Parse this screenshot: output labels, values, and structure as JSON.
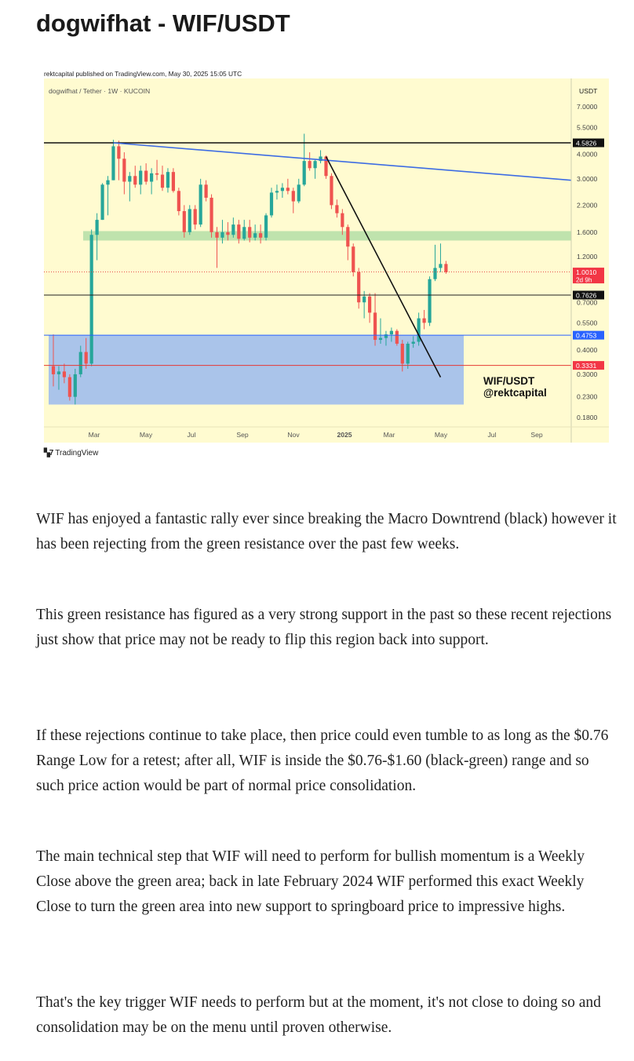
{
  "page_title": "dogwifhat - WIF/USDT",
  "chart_data": {
    "type": "candlestick",
    "published_line": "rektcapital published on TradingView.com, May 30, 2025 15:05 UTC",
    "symbol_line": "dogwifhat / Tether · 1W · KUCOIN",
    "currency": "USDT",
    "scale": "log",
    "y_ticks": [
      "7.0000",
      "5.5000",
      "4.0000",
      "3.0000",
      "2.2000",
      "1.6000",
      "1.2000",
      "0.7000",
      "0.5500",
      "0.4000",
      "0.3000",
      "0.2300",
      "0.1800"
    ],
    "x_ticks": [
      "Mar",
      "May",
      "Jul",
      "Sep",
      "Nov",
      "2025",
      "Mar",
      "May",
      "Jul",
      "Sep"
    ],
    "price_labels": [
      {
        "text": "4.5826",
        "color": "#111111"
      },
      {
        "text": "1.0010",
        "sub": "2d 9h",
        "color": "#f23645"
      },
      {
        "text": "0.7626",
        "color": "#111111"
      },
      {
        "text": "0.4753",
        "color": "#2962ff"
      },
      {
        "text": "0.3331",
        "color": "#f23645"
      }
    ],
    "levels": {
      "resistance_line": 4.5826,
      "range_low": 0.7626,
      "blue_line": 0.4753,
      "red_line": 0.3331
    },
    "zones": {
      "green_resistance": [
        1.45,
        1.62
      ],
      "blue_support": [
        0.21,
        0.4753
      ]
    },
    "annotation": {
      "line1": "WIF/USDT",
      "line2": "@rektcapital"
    },
    "candles": [
      {
        "date": "2024-01-08",
        "o": 0.33,
        "h": 0.48,
        "l": 0.26,
        "c": 0.3
      },
      {
        "date": "2024-01-15",
        "o": 0.3,
        "h": 0.33,
        "l": 0.25,
        "c": 0.31
      },
      {
        "date": "2024-01-22",
        "o": 0.31,
        "h": 0.34,
        "l": 0.27,
        "c": 0.29
      },
      {
        "date": "2024-01-29",
        "o": 0.29,
        "h": 0.3,
        "l": 0.22,
        "c": 0.23
      },
      {
        "date": "2024-02-05",
        "o": 0.23,
        "h": 0.32,
        "l": 0.21,
        "c": 0.3
      },
      {
        "date": "2024-02-12",
        "o": 0.3,
        "h": 0.42,
        "l": 0.29,
        "c": 0.39
      },
      {
        "date": "2024-02-19",
        "o": 0.39,
        "h": 0.46,
        "l": 0.32,
        "c": 0.34
      },
      {
        "date": "2024-02-26",
        "o": 0.34,
        "h": 1.65,
        "l": 0.33,
        "c": 1.55
      },
      {
        "date": "2024-03-04",
        "o": 1.55,
        "h": 2.0,
        "l": 1.15,
        "c": 1.85
      },
      {
        "date": "2024-03-11",
        "o": 1.85,
        "h": 2.85,
        "l": 1.85,
        "c": 2.8
      },
      {
        "date": "2024-03-18",
        "o": 2.8,
        "h": 3.1,
        "l": 1.95,
        "c": 2.95
      },
      {
        "date": "2024-03-25",
        "o": 2.95,
        "h": 4.75,
        "l": 2.95,
        "c": 4.4
      },
      {
        "date": "2024-04-01",
        "o": 4.4,
        "h": 4.7,
        "l": 2.95,
        "c": 3.8
      },
      {
        "date": "2024-04-08",
        "o": 3.8,
        "h": 4.1,
        "l": 2.5,
        "c": 2.9
      },
      {
        "date": "2024-04-15",
        "o": 2.9,
        "h": 3.25,
        "l": 2.3,
        "c": 3.1
      },
      {
        "date": "2024-04-22",
        "o": 3.1,
        "h": 3.5,
        "l": 2.7,
        "c": 2.8
      },
      {
        "date": "2024-04-29",
        "o": 2.8,
        "h": 3.5,
        "l": 2.5,
        "c": 3.3
      },
      {
        "date": "2024-05-06",
        "o": 3.3,
        "h": 3.6,
        "l": 2.8,
        "c": 2.9
      },
      {
        "date": "2024-05-13",
        "o": 2.9,
        "h": 3.4,
        "l": 2.5,
        "c": 3.2
      },
      {
        "date": "2024-05-20",
        "o": 3.2,
        "h": 3.75,
        "l": 2.95,
        "c": 3.15
      },
      {
        "date": "2024-05-27",
        "o": 3.15,
        "h": 3.5,
        "l": 2.6,
        "c": 2.7
      },
      {
        "date": "2024-06-03",
        "o": 2.7,
        "h": 3.4,
        "l": 2.55,
        "c": 3.25
      },
      {
        "date": "2024-06-10",
        "o": 3.25,
        "h": 3.4,
        "l": 2.55,
        "c": 2.6
      },
      {
        "date": "2024-06-17",
        "o": 2.6,
        "h": 2.7,
        "l": 1.95,
        "c": 2.05
      },
      {
        "date": "2024-06-24",
        "o": 2.05,
        "h": 2.2,
        "l": 1.5,
        "c": 1.6
      },
      {
        "date": "2024-07-01",
        "o": 1.6,
        "h": 2.2,
        "l": 1.55,
        "c": 2.1
      },
      {
        "date": "2024-07-08",
        "o": 2.1,
        "h": 2.2,
        "l": 1.65,
        "c": 1.75
      },
      {
        "date": "2024-07-15",
        "o": 1.75,
        "h": 3.0,
        "l": 1.7,
        "c": 2.8
      },
      {
        "date": "2024-07-22",
        "o": 2.8,
        "h": 2.95,
        "l": 2.3,
        "c": 2.4
      },
      {
        "date": "2024-07-29",
        "o": 2.4,
        "h": 2.5,
        "l": 1.5,
        "c": 1.6
      },
      {
        "date": "2024-08-05",
        "o": 1.6,
        "h": 1.7,
        "l": 1.05,
        "c": 1.5
      },
      {
        "date": "2024-08-12",
        "o": 1.5,
        "h": 1.85,
        "l": 1.4,
        "c": 1.6
      },
      {
        "date": "2024-08-19",
        "o": 1.6,
        "h": 1.8,
        "l": 1.45,
        "c": 1.55
      },
      {
        "date": "2024-08-26",
        "o": 1.55,
        "h": 1.9,
        "l": 1.5,
        "c": 1.75
      },
      {
        "date": "2024-09-02",
        "o": 1.75,
        "h": 1.85,
        "l": 1.4,
        "c": 1.48
      },
      {
        "date": "2024-09-09",
        "o": 1.48,
        "h": 1.85,
        "l": 1.45,
        "c": 1.7
      },
      {
        "date": "2024-09-16",
        "o": 1.7,
        "h": 1.85,
        "l": 1.42,
        "c": 1.5
      },
      {
        "date": "2024-09-23",
        "o": 1.5,
        "h": 1.75,
        "l": 1.45,
        "c": 1.58
      },
      {
        "date": "2024-09-30",
        "o": 1.58,
        "h": 1.75,
        "l": 1.4,
        "c": 1.5
      },
      {
        "date": "2024-10-07",
        "o": 1.5,
        "h": 2.0,
        "l": 1.45,
        "c": 1.95
      },
      {
        "date": "2024-10-14",
        "o": 1.95,
        "h": 2.7,
        "l": 1.9,
        "c": 2.55
      },
      {
        "date": "2024-10-21",
        "o": 2.55,
        "h": 2.8,
        "l": 2.35,
        "c": 2.6
      },
      {
        "date": "2024-10-28",
        "o": 2.6,
        "h": 2.85,
        "l": 2.4,
        "c": 2.7
      },
      {
        "date": "2024-11-04",
        "o": 2.7,
        "h": 3.0,
        "l": 2.5,
        "c": 2.6
      },
      {
        "date": "2024-11-11",
        "o": 2.6,
        "h": 2.7,
        "l": 2.0,
        "c": 2.3
      },
      {
        "date": "2024-11-18",
        "o": 2.3,
        "h": 3.0,
        "l": 2.25,
        "c": 2.8
      },
      {
        "date": "2024-11-25",
        "o": 2.8,
        "h": 5.1,
        "l": 2.75,
        "c": 3.7
      },
      {
        "date": "2024-12-02",
        "o": 3.7,
        "h": 4.1,
        "l": 3.3,
        "c": 3.4
      },
      {
        "date": "2024-12-09",
        "o": 3.4,
        "h": 3.75,
        "l": 3.0,
        "c": 3.7
      },
      {
        "date": "2024-12-16",
        "o": 3.7,
        "h": 4.2,
        "l": 3.6,
        "c": 3.9
      },
      {
        "date": "2024-12-23",
        "o": 3.9,
        "h": 3.95,
        "l": 3.0,
        "c": 3.1
      },
      {
        "date": "2024-12-30",
        "o": 3.1,
        "h": 3.2,
        "l": 2.1,
        "c": 2.2
      },
      {
        "date": "2025-01-06",
        "o": 2.2,
        "h": 2.35,
        "l": 1.9,
        "c": 2.0
      },
      {
        "date": "2025-01-13",
        "o": 2.0,
        "h": 2.1,
        "l": 1.55,
        "c": 1.7
      },
      {
        "date": "2025-01-20",
        "o": 1.7,
        "h": 1.75,
        "l": 1.15,
        "c": 1.35
      },
      {
        "date": "2025-01-27",
        "o": 1.35,
        "h": 1.4,
        "l": 0.95,
        "c": 1.0
      },
      {
        "date": "2025-02-03",
        "o": 1.0,
        "h": 1.05,
        "l": 0.65,
        "c": 0.7
      },
      {
        "date": "2025-02-10",
        "o": 0.7,
        "h": 0.8,
        "l": 0.58,
        "c": 0.75
      },
      {
        "date": "2025-02-17",
        "o": 0.75,
        "h": 0.78,
        "l": 0.55,
        "c": 0.62
      },
      {
        "date": "2025-02-24",
        "o": 0.62,
        "h": 0.78,
        "l": 0.42,
        "c": 0.45
      },
      {
        "date": "2025-03-03",
        "o": 0.45,
        "h": 0.58,
        "l": 0.43,
        "c": 0.46
      },
      {
        "date": "2025-03-10",
        "o": 0.46,
        "h": 0.5,
        "l": 0.42,
        "c": 0.48
      },
      {
        "date": "2025-03-17",
        "o": 0.48,
        "h": 0.52,
        "l": 0.44,
        "c": 0.5
      },
      {
        "date": "2025-03-24",
        "o": 0.5,
        "h": 0.51,
        "l": 0.42,
        "c": 0.43
      },
      {
        "date": "2025-03-31",
        "o": 0.43,
        "h": 0.45,
        "l": 0.31,
        "c": 0.34
      },
      {
        "date": "2025-04-07",
        "o": 0.34,
        "h": 0.44,
        "l": 0.32,
        "c": 0.43
      },
      {
        "date": "2025-04-14",
        "o": 0.43,
        "h": 0.47,
        "l": 0.41,
        "c": 0.44
      },
      {
        "date": "2025-04-21",
        "o": 0.44,
        "h": 0.62,
        "l": 0.42,
        "c": 0.58
      },
      {
        "date": "2025-04-28",
        "o": 0.58,
        "h": 0.64,
        "l": 0.51,
        "c": 0.55
      },
      {
        "date": "2025-05-05",
        "o": 0.55,
        "h": 0.95,
        "l": 0.53,
        "c": 0.92
      },
      {
        "date": "2025-05-12",
        "o": 0.92,
        "h": 1.38,
        "l": 0.9,
        "c": 1.05
      },
      {
        "date": "2025-05-19",
        "o": 1.05,
        "h": 1.4,
        "l": 1.0,
        "c": 1.1
      },
      {
        "date": "2025-05-26",
        "o": 1.1,
        "h": 1.14,
        "l": 0.98,
        "c": 1.0
      }
    ]
  },
  "article": [
    "WIF has enjoyed a fantastic rally ever since breaking the Macro Downtrend (black) however it has been rejecting from the green resistance over the past few weeks.",
    "This green resistance has figured as a very strong support in the past so these recent rejections just show that price may not be ready to flip this region back into support.",
    "If these rejections continue to take place, then price could even tumble to as long as the $0.76 Range Low for a retest; after all, WIF is inside the $0.76-$1.60 (black-green) range and so such price action would be part of normal price consolidation.",
    "The main technical step that WIF will need to perform for bullish momentum is a Weekly Close above the green area; back in late February 2024 WIF performed this exact Weekly Close to turn the green area into new support to springboard price to impressive highs.",
    "That's the key trigger WIF needs to perform but at the moment, it's not close to doing so and consolidation may be on the menu until proven otherwise."
  ],
  "tradingview_logo": "TradingView",
  "colors": {
    "chart_bg": "#fffbd0",
    "up": "#26a69a",
    "down": "#ef5350",
    "trendline_blue": "#3d6ce3",
    "green_zone": "#bfe3ad",
    "blue_zone": "#aac4ea"
  }
}
